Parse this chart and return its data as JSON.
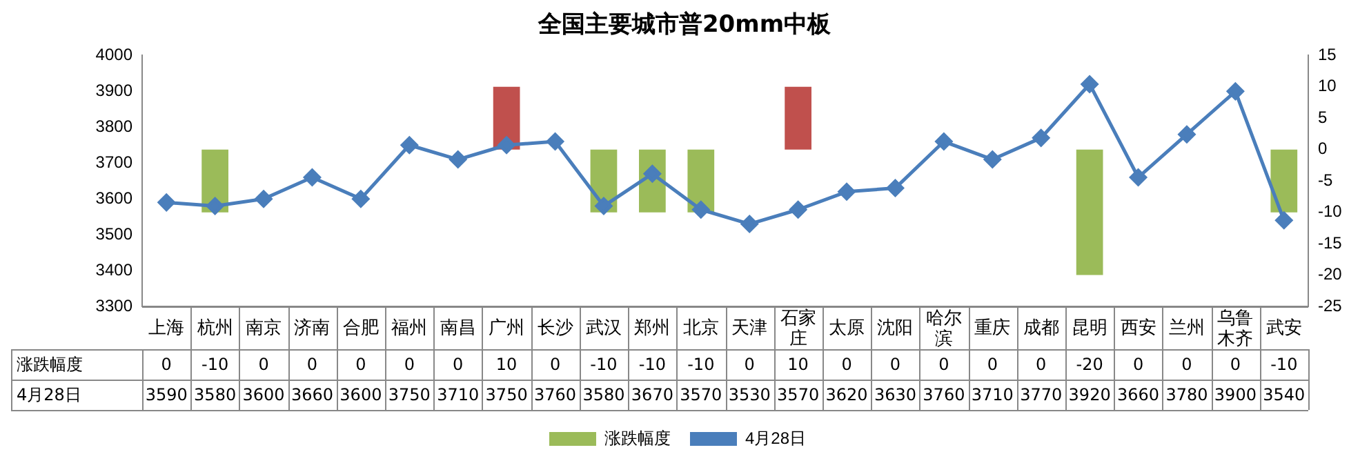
{
  "chart_data": {
    "type": "bar",
    "title": "全国主要城市普20mm中板",
    "categories": [
      "上海",
      "杭州",
      "南京",
      "济南",
      "合肥",
      "福州",
      "南昌",
      "广州",
      "长沙",
      "武汉",
      "郑州",
      "北京",
      "天津",
      "石家庄",
      "太原",
      "沈阳",
      "哈尔滨",
      "重庆",
      "成都",
      "昆明",
      "西安",
      "兰州",
      "乌鲁木齐",
      "武安"
    ],
    "series": [
      {
        "axis": "y2",
        "name": "涨跌幅度",
        "color": "#9bbb59",
        "colors": [
          "#9bbb59",
          "#9bbb59",
          "#9bbb59",
          "#9bbb59",
          "#9bbb59",
          "#9bbb59",
          "#9bbb59",
          "#c0504d",
          "#9bbb59",
          "#9bbb59",
          "#9bbb59",
          "#9bbb59",
          "#9bbb59",
          "#c0504d",
          "#9bbb59",
          "#9bbb59",
          "#9bbb59",
          "#9bbb59",
          "#9bbb59",
          "#9bbb59",
          "#9bbb59",
          "#9bbb59",
          "#9bbb59",
          "#9bbb59"
        ],
        "values": [
          0,
          -10,
          0,
          0,
          0,
          0,
          0,
          10,
          0,
          -10,
          -10,
          -10,
          0,
          10,
          0,
          0,
          0,
          0,
          0,
          -20,
          0,
          0,
          0,
          -10
        ]
      },
      {
        "type": "line",
        "name": "4月28日",
        "color": "#4a7ebb",
        "values": [
          3590,
          3580,
          3600,
          3660,
          3600,
          3750,
          3710,
          3750,
          3760,
          3580,
          3670,
          3570,
          3530,
          3570,
          3620,
          3630,
          3760,
          3710,
          3770,
          3920,
          3660,
          3780,
          3900,
          3540
        ]
      }
    ],
    "ylim": [
      3300,
      4000
    ],
    "yticks": [
      3300,
      3400,
      3500,
      3600,
      3700,
      3800,
      3900,
      4000
    ],
    "y2lim": [
      -25,
      15
    ],
    "y2ticks": [
      -25,
      -20,
      -15,
      -10,
      -5,
      0,
      5,
      10,
      15
    ],
    "data_labels": true,
    "legend": "bottom",
    "marker": "diamond",
    "line_style": "solid",
    "grid": false
  }
}
